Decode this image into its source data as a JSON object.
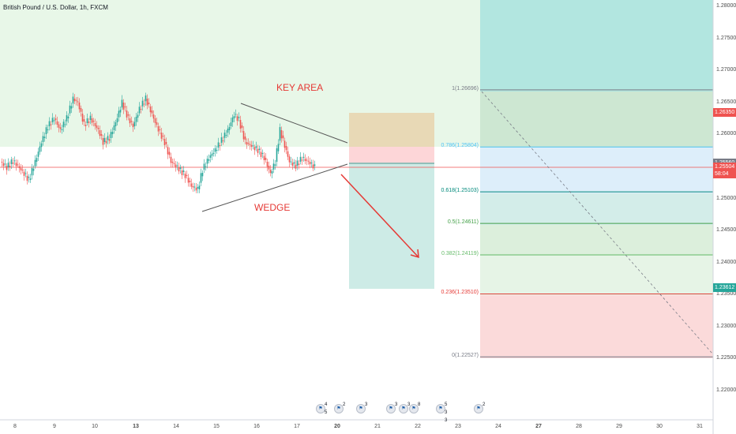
{
  "chart_header": {
    "symbol": "British Pound / U.S. Dollar, 1h, FXCM"
  },
  "annotations": {
    "key_area": "KEY AREA",
    "wedge": "WEDGE"
  },
  "fib_levels": [
    {
      "label": "1(1.26696)",
      "value": 1.26696,
      "color": "#787b86"
    },
    {
      "label": "0.786(1.25804)",
      "value": 1.25804,
      "color": "#4fc3f7"
    },
    {
      "label": "0.618(1.25103)",
      "value": 1.25103,
      "color": "#00897b"
    },
    {
      "label": "0.5(1.24611)",
      "value": 1.24611,
      "color": "#43a047"
    },
    {
      "label": "0.382(1.24119)",
      "value": 1.24119,
      "color": "#66bb6a"
    },
    {
      "label": "0.236(1.23510)",
      "value": 1.2351,
      "color": "#e53935"
    },
    {
      "label": "0(1.22527)",
      "value": 1.22527,
      "color": "#787b86"
    }
  ],
  "price_axis": {
    "ticks": [
      "1.28000",
      "1.27500",
      "1.27000",
      "1.26500",
      "1.26000",
      "1.25500",
      "1.25000",
      "1.24500",
      "1.24000",
      "1.23500",
      "1.23000",
      "1.22500",
      "1.22000"
    ],
    "tags": [
      {
        "text": "1.26350",
        "value": 1.2635,
        "color": "#ef5350"
      },
      {
        "text": "1.25560",
        "value": 1.2556,
        "color": "#787b86"
      },
      {
        "text": "1.25504",
        "value": 1.25504,
        "color": "#ef5350"
      },
      {
        "text": "58:04",
        "value": 1.2539,
        "color": "#ef5350"
      },
      {
        "text": "1.23612",
        "value": 1.23612,
        "color": "#26a69a"
      }
    ]
  },
  "time_axis": {
    "ticks": [
      {
        "label": "8",
        "bold": false
      },
      {
        "label": "9",
        "bold": false
      },
      {
        "label": "10",
        "bold": false
      },
      {
        "label": "13",
        "bold": true
      },
      {
        "label": "14",
        "bold": false
      },
      {
        "label": "15",
        "bold": false
      },
      {
        "label": "16",
        "bold": false
      },
      {
        "label": "17",
        "bold": false
      },
      {
        "label": "20",
        "bold": true
      },
      {
        "label": "21",
        "bold": false
      },
      {
        "label": "22",
        "bold": false
      },
      {
        "label": "23",
        "bold": false
      },
      {
        "label": "24",
        "bold": false
      },
      {
        "label": "27",
        "bold": true
      },
      {
        "label": "28",
        "bold": false
      },
      {
        "label": "29",
        "bold": false
      },
      {
        "label": "30",
        "bold": false
      },
      {
        "label": "31",
        "bold": false
      }
    ]
  },
  "events": [
    {
      "count": "4 5",
      "icon": "flag-icon"
    },
    {
      "count": "2",
      "icon": "flag-icon"
    },
    {
      "count": "3",
      "icon": "flag-icon"
    },
    {
      "count": "3",
      "icon": "flag-icon"
    },
    {
      "count": "3",
      "icon": "flag-icon"
    },
    {
      "count": "8",
      "icon": "flag-icon"
    },
    {
      "count": "5 3 3",
      "icon": "flag-icon"
    },
    {
      "count": "2",
      "icon": "flag-icon"
    }
  ],
  "colors": {
    "up": "#26a69a",
    "down": "#ef5350",
    "key_zone": "#e8f7e8",
    "target_zone": "#b2e6e0"
  }
}
